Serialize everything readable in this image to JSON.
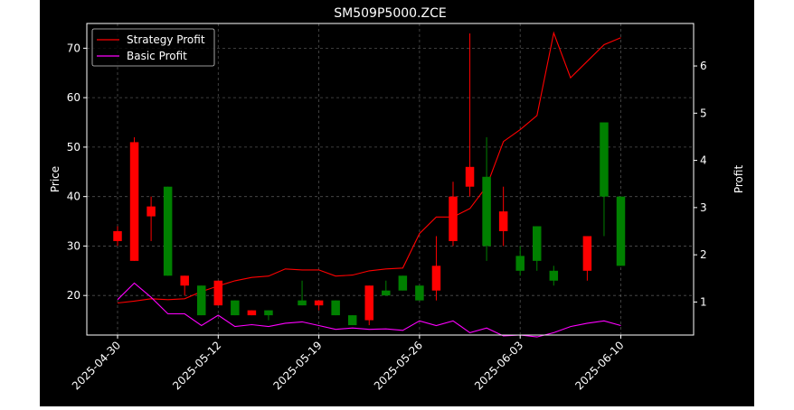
{
  "chart_data": {
    "type": "candlestick",
    "title": "SM509P5000.ZCE",
    "ylabel": "Price",
    "ylabel_right": "Profit",
    "ylim": [
      12,
      75
    ],
    "ylim_right": [
      0.3,
      6.9
    ],
    "yticks": [
      20,
      30,
      40,
      50,
      60,
      70
    ],
    "yticks_right": [
      1,
      2,
      3,
      4,
      5,
      6
    ],
    "grid": true,
    "legend_position": "upper-left",
    "x_tick_labels": [
      "2025-04-30",
      "2025-05-12",
      "2025-05-19",
      "2025-05-26",
      "2025-06-03",
      "2025-06-10"
    ],
    "x_tick_indices": [
      0,
      6,
      12,
      18,
      24,
      30
    ],
    "candles": [
      {
        "open": 31,
        "high": 34,
        "low": 30,
        "close": 33
      },
      {
        "open": 27,
        "high": 52,
        "low": 27,
        "close": 51
      },
      {
        "open": 36,
        "high": 40,
        "low": 31,
        "close": 38
      },
      {
        "open": 42,
        "high": 42,
        "low": 24,
        "close": 24
      },
      {
        "open": 22,
        "high": 24,
        "low": 20,
        "close": 24
      },
      {
        "open": 22,
        "high": 22,
        "low": 16,
        "close": 16
      },
      {
        "open": 18,
        "high": 23,
        "low": 18,
        "close": 23
      },
      {
        "open": 19,
        "high": 19,
        "low": 16,
        "close": 16
      },
      {
        "open": 16,
        "high": 17,
        "low": 16,
        "close": 17
      },
      {
        "open": 17,
        "high": 17,
        "low": 15,
        "close": 16
      },
      {
        "open": 19,
        "high": 23,
        "low": 18,
        "close": 18
      },
      {
        "open": 18,
        "high": 19,
        "low": 17,
        "close": 19
      },
      {
        "open": 19,
        "high": 19,
        "low": 16,
        "close": 16
      },
      {
        "open": 16,
        "high": 16,
        "low": 14,
        "close": 14
      },
      {
        "open": 15,
        "high": 22,
        "low": 14,
        "close": 22
      },
      {
        "open": 21,
        "high": 23,
        "low": 20,
        "close": 20
      },
      {
        "open": 24,
        "high": 24,
        "low": 21,
        "close": 21
      },
      {
        "open": 22,
        "high": 22,
        "low": 19,
        "close": 19
      },
      {
        "open": 21,
        "high": 32,
        "low": 19,
        "close": 26
      },
      {
        "open": 31,
        "high": 43,
        "low": 30,
        "close": 40
      },
      {
        "open": 42,
        "high": 73,
        "low": 40,
        "close": 46
      },
      {
        "open": 44,
        "high": 52,
        "low": 27,
        "close": 30
      },
      {
        "open": 33,
        "high": 42,
        "low": 30,
        "close": 37
      },
      {
        "open": 28,
        "high": 30,
        "low": 24,
        "close": 25
      },
      {
        "open": 34,
        "high": 34,
        "low": 25,
        "close": 27
      },
      {
        "open": 25,
        "high": 26,
        "low": 22,
        "close": 23
      },
      {
        "open": 25,
        "high": 32,
        "low": 23,
        "close": 32
      },
      {
        "open": 55,
        "high": 55,
        "low": 32,
        "close": 40
      },
      {
        "open": 40,
        "high": 40,
        "low": 26,
        "close": 26
      }
    ],
    "candle_x": [
      0,
      1,
      2,
      3,
      4,
      5,
      6,
      7,
      8,
      9,
      11,
      12,
      13,
      14,
      15,
      16,
      17,
      18,
      19,
      20,
      21,
      22,
      23,
      24,
      25,
      26,
      28,
      29,
      30
    ],
    "series": [
      {
        "name": "Strategy Profit",
        "color": "#ff0000",
        "axis": "right",
        "x": [
          0,
          1,
          2,
          3,
          4,
          5,
          6,
          7,
          8,
          9,
          10,
          11,
          12,
          13,
          14,
          15,
          16,
          17,
          18,
          19,
          20,
          21,
          22,
          23,
          24,
          25,
          26,
          27,
          28,
          29,
          30
        ],
        "values": [
          0.98,
          1.02,
          1.07,
          1.05,
          1.07,
          1.22,
          1.34,
          1.45,
          1.52,
          1.55,
          1.7,
          1.68,
          1.68,
          1.55,
          1.57,
          1.66,
          1.7,
          1.72,
          2.45,
          2.8,
          2.8,
          2.98,
          3.45,
          4.4,
          4.65,
          4.95,
          6.7,
          5.75,
          6.1,
          6.45,
          6.6
        ]
      },
      {
        "name": "Basic Profit",
        "color": "#ff00ff",
        "axis": "right",
        "x": [
          0,
          1,
          2,
          3,
          4,
          5,
          6,
          7,
          8,
          9,
          10,
          11,
          12,
          13,
          14,
          15,
          16,
          17,
          18,
          19,
          20,
          21,
          22,
          23,
          24,
          25,
          26,
          27,
          28,
          29,
          30
        ],
        "values": [
          1.05,
          1.4,
          1.1,
          0.75,
          0.75,
          0.5,
          0.72,
          0.48,
          0.52,
          0.48,
          0.55,
          0.58,
          0.5,
          0.42,
          0.45,
          0.42,
          0.43,
          0.4,
          0.6,
          0.5,
          0.6,
          0.35,
          0.45,
          0.28,
          0.3,
          0.26,
          0.35,
          0.48,
          0.55,
          0.6,
          0.5
        ]
      }
    ]
  }
}
